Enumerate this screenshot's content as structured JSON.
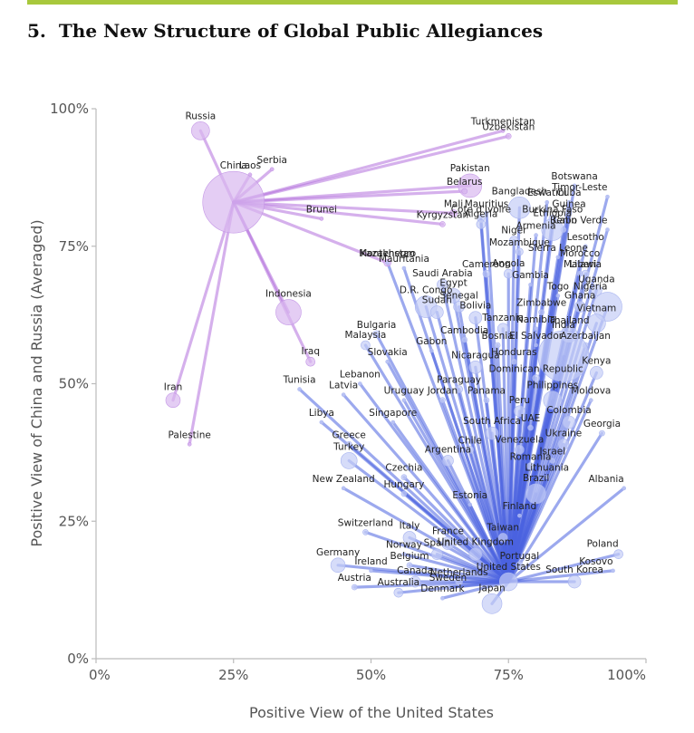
{
  "header": {
    "number": "5.",
    "title": "The New Structure of Global Public Allegiances"
  },
  "colors": {
    "accent": "#a8c83c",
    "china_links": "#b36fdc",
    "us_links": "#4a63e0",
    "axis": "#bbbbbb"
  },
  "chart_data": {
    "type": "scatter",
    "title": "",
    "xlabel": "Positive View of the United States",
    "ylabel": "Positive View of China and Russia (Averaged)",
    "xlim": [
      0,
      100
    ],
    "ylim": [
      0,
      100
    ],
    "x_ticks": [
      "0%",
      "25%",
      "50%",
      "75%",
      "100%"
    ],
    "y_ticks": [
      "0%",
      "25%",
      "50%",
      "75%",
      "100%"
    ],
    "grid": false,
    "legend": "none",
    "hubs": [
      {
        "name": "China",
        "x": 25,
        "y": 83
      },
      {
        "name": "United States",
        "x": 75,
        "y": 14
      }
    ],
    "points": [
      {
        "name": "Russia",
        "x": 19,
        "y": 96,
        "size": 10,
        "group": "china"
      },
      {
        "name": "Serbia",
        "x": 32,
        "y": 89,
        "size": 2,
        "group": "china"
      },
      {
        "name": "Laos",
        "x": 28,
        "y": 88,
        "size": 2,
        "group": "china"
      },
      {
        "name": "China",
        "x": 25,
        "y": 83,
        "size": 34,
        "group": "china",
        "hub": true
      },
      {
        "name": "Brunei",
        "x": 41,
        "y": 80,
        "size": 2,
        "group": "china"
      },
      {
        "name": "Turkmenistan",
        "x": 74,
        "y": 96,
        "size": 2,
        "group": "china"
      },
      {
        "name": "Uzbekistan",
        "x": 75,
        "y": 95,
        "size": 3,
        "group": "china"
      },
      {
        "name": "Pakistan",
        "x": 68,
        "y": 86,
        "size": 13,
        "group": "china"
      },
      {
        "name": "Belarus",
        "x": 67,
        "y": 85,
        "size": 3,
        "group": "china"
      },
      {
        "name": "Mali",
        "x": 65,
        "y": 81,
        "size": 4,
        "group": "china"
      },
      {
        "name": "Kyrgyzstan",
        "x": 63,
        "y": 79,
        "size": 3,
        "group": "china"
      },
      {
        "name": "Kazakhstan",
        "x": 53,
        "y": 72,
        "size": 4,
        "group": "china"
      },
      {
        "name": "Indonesia",
        "x": 35,
        "y": 63,
        "size": 14,
        "group": "china"
      },
      {
        "name": "Iraq",
        "x": 39,
        "y": 54,
        "size": 5,
        "group": "china"
      },
      {
        "name": "Iran",
        "x": 14,
        "y": 47,
        "size": 8,
        "group": "china"
      },
      {
        "name": "Palestine",
        "x": 17,
        "y": 39,
        "size": 2,
        "group": "china"
      },
      {
        "name": "Eswatini",
        "x": 82,
        "y": 83,
        "size": 2,
        "group": "us"
      },
      {
        "name": "Botswana",
        "x": 87,
        "y": 86,
        "size": 2,
        "group": "us"
      },
      {
        "name": "Cuba",
        "x": 86,
        "y": 83,
        "size": 2,
        "group": "us"
      },
      {
        "name": "Timor-Leste",
        "x": 93,
        "y": 84,
        "size": 2,
        "group": "us"
      },
      {
        "name": "Bangladesh",
        "x": 77,
        "y": 82,
        "size": 12,
        "group": "us"
      },
      {
        "name": "Mauritius",
        "x": 71,
        "y": 81,
        "size": 2,
        "group": "us"
      },
      {
        "name": "Burkina Faso",
        "x": 83,
        "y": 80,
        "size": 4,
        "group": "us"
      },
      {
        "name": "Guinea",
        "x": 86,
        "y": 81,
        "size": 3,
        "group": "us"
      },
      {
        "name": "Benin",
        "x": 85,
        "y": 78,
        "size": 3,
        "group": "us"
      },
      {
        "name": "Cabo Verde",
        "x": 93,
        "y": 78,
        "size": 2,
        "group": "us"
      },
      {
        "name": "Cote d'Ivoire",
        "x": 70,
        "y": 80,
        "size": 4,
        "group": "us"
      },
      {
        "name": "Ethiopia",
        "x": 83,
        "y": 78,
        "size": 12,
        "group": "us"
      },
      {
        "name": "Algeria",
        "x": 70,
        "y": 79,
        "size": 5,
        "group": "us"
      },
      {
        "name": "Niger",
        "x": 76,
        "y": 76,
        "size": 5,
        "group": "us"
      },
      {
        "name": "Armenia",
        "x": 80,
        "y": 77,
        "size": 2,
        "group": "us"
      },
      {
        "name": "Lesotho",
        "x": 89,
        "y": 75,
        "size": 2,
        "group": "us"
      },
      {
        "name": "Mozambique",
        "x": 77,
        "y": 74,
        "size": 4,
        "group": "us"
      },
      {
        "name": "Sierra Leone",
        "x": 84,
        "y": 73,
        "size": 2,
        "group": "us"
      },
      {
        "name": "Morocco",
        "x": 88,
        "y": 72,
        "size": 3,
        "group": "us"
      },
      {
        "name": "Montenegro",
        "x": 53,
        "y": 72,
        "size": 2,
        "group": "us"
      },
      {
        "name": "Angola",
        "x": 75,
        "y": 70,
        "size": 5,
        "group": "us"
      },
      {
        "name": "Cameroon",
        "x": 71,
        "y": 70,
        "size": 4,
        "group": "us"
      },
      {
        "name": "Mauritania",
        "x": 56,
        "y": 71,
        "size": 2,
        "group": "us"
      },
      {
        "name": "Malawi",
        "x": 88,
        "y": 70,
        "size": 3,
        "group": "us"
      },
      {
        "name": "Liberia",
        "x": 89,
        "y": 70,
        "size": 4,
        "group": "us"
      },
      {
        "name": "Saudi Arabia",
        "x": 63,
        "y": 68,
        "size": 6,
        "group": "us"
      },
      {
        "name": "Gambia",
        "x": 79,
        "y": 68,
        "size": 2,
        "group": "us"
      },
      {
        "name": "Egypt",
        "x": 65,
        "y": 66,
        "size": 8,
        "group": "us"
      },
      {
        "name": "Togo",
        "x": 84,
        "y": 66,
        "size": 2,
        "group": "us"
      },
      {
        "name": "Uganda",
        "x": 91,
        "y": 67,
        "size": 6,
        "group": "us"
      },
      {
        "name": "D.R. Congo",
        "x": 60,
        "y": 64,
        "size": 12,
        "group": "us"
      },
      {
        "name": "Senegal",
        "x": 66,
        "y": 64,
        "size": 6,
        "group": "us"
      },
      {
        "name": "Nigeria",
        "x": 93,
        "y": 64,
        "size": 16,
        "group": "us"
      },
      {
        "name": "Zimbabwe",
        "x": 81,
        "y": 63,
        "size": 3,
        "group": "us"
      },
      {
        "name": "Ghana",
        "x": 88,
        "y": 64,
        "size": 6,
        "group": "us"
      },
      {
        "name": "Sudan",
        "x": 62,
        "y": 63,
        "size": 7,
        "group": "us"
      },
      {
        "name": "Bolivia",
        "x": 69,
        "y": 62,
        "size": 7,
        "group": "us"
      },
      {
        "name": "Vietnam",
        "x": 91,
        "y": 61,
        "size": 10,
        "group": "us"
      },
      {
        "name": "Tanzania",
        "x": 74,
        "y": 60,
        "size": 6,
        "group": "us"
      },
      {
        "name": "Namibia",
        "x": 80,
        "y": 60,
        "size": 2,
        "group": "us"
      },
      {
        "name": "Thailand",
        "x": 86,
        "y": 59,
        "size": 9,
        "group": "us"
      },
      {
        "name": "Bulgaria",
        "x": 51,
        "y": 59,
        "size": 4,
        "group": "us"
      },
      {
        "name": "Malaysia",
        "x": 49,
        "y": 57,
        "size": 5,
        "group": "us"
      },
      {
        "name": "Cambodia",
        "x": 67,
        "y": 58,
        "size": 3,
        "group": "us"
      },
      {
        "name": "Bosnia",
        "x": 73,
        "y": 57,
        "size": 3,
        "group": "us"
      },
      {
        "name": "El Salvador",
        "x": 80,
        "y": 57,
        "size": 2,
        "group": "us"
      },
      {
        "name": "Azerbaijan",
        "x": 89,
        "y": 57,
        "size": 3,
        "group": "us"
      },
      {
        "name": "Gabon",
        "x": 61,
        "y": 56,
        "size": 2,
        "group": "us"
      },
      {
        "name": "Honduras",
        "x": 76,
        "y": 54,
        "size": 3,
        "group": "us"
      },
      {
        "name": "India",
        "x": 85,
        "y": 55,
        "size": 28,
        "group": "us"
      },
      {
        "name": "Slovakia",
        "x": 53,
        "y": 54,
        "size": 2,
        "group": "us"
      },
      {
        "name": "Nicaragua",
        "x": 69,
        "y": 53,
        "size": 7,
        "group": "us"
      },
      {
        "name": "Tunisia",
        "x": 37,
        "y": 49,
        "size": 2,
        "group": "us"
      },
      {
        "name": "Lebanon",
        "x": 48,
        "y": 50,
        "size": 2,
        "group": "us"
      },
      {
        "name": "Dominican Republic",
        "x": 80,
        "y": 51,
        "size": 4,
        "group": "us"
      },
      {
        "name": "Kenya",
        "x": 91,
        "y": 52,
        "size": 7,
        "group": "us"
      },
      {
        "name": "Paraguay",
        "x": 66,
        "y": 49,
        "size": 4,
        "group": "us"
      },
      {
        "name": "Latvia",
        "x": 45,
        "y": 48,
        "size": 2,
        "group": "us"
      },
      {
        "name": "Uruguay",
        "x": 56,
        "y": 47,
        "size": 2,
        "group": "us"
      },
      {
        "name": "Jordan",
        "x": 63,
        "y": 47,
        "size": 3,
        "group": "us"
      },
      {
        "name": "Panama",
        "x": 71,
        "y": 47,
        "size": 3,
        "group": "us"
      },
      {
        "name": "Philippines",
        "x": 83,
        "y": 47,
        "size": 10,
        "group": "us"
      },
      {
        "name": "Moldova",
        "x": 90,
        "y": 47,
        "size": 2,
        "group": "us"
      },
      {
        "name": "Peru",
        "x": 77,
        "y": 45,
        "size": 6,
        "group": "us"
      },
      {
        "name": "Libya",
        "x": 41,
        "y": 43,
        "size": 2,
        "group": "us"
      },
      {
        "name": "Singapore",
        "x": 54,
        "y": 43,
        "size": 2,
        "group": "us"
      },
      {
        "name": "Colombia",
        "x": 86,
        "y": 43,
        "size": 7,
        "group": "us"
      },
      {
        "name": "UAE",
        "x": 79,
        "y": 42,
        "size": 3,
        "group": "us"
      },
      {
        "name": "South Africa",
        "x": 72,
        "y": 41,
        "size": 7,
        "group": "us"
      },
      {
        "name": "Greece",
        "x": 46,
        "y": 39,
        "size": 3,
        "group": "us"
      },
      {
        "name": "Ukraine",
        "x": 85,
        "y": 39,
        "size": 6,
        "group": "us"
      },
      {
        "name": "Georgia",
        "x": 92,
        "y": 41,
        "size": 3,
        "group": "us"
      },
      {
        "name": "Chile",
        "x": 68,
        "y": 38,
        "size": 4,
        "group": "us"
      },
      {
        "name": "Venezuela",
        "x": 77,
        "y": 38,
        "size": 5,
        "group": "us"
      },
      {
        "name": "Turkey",
        "x": 46,
        "y": 36,
        "size": 9,
        "group": "us"
      },
      {
        "name": "Israel",
        "x": 83,
        "y": 36,
        "size": 3,
        "group": "us"
      },
      {
        "name": "Argentina",
        "x": 64,
        "y": 36,
        "size": 6,
        "group": "us"
      },
      {
        "name": "Romania",
        "x": 79,
        "y": 35,
        "size": 4,
        "group": "us"
      },
      {
        "name": "Czechia",
        "x": 56,
        "y": 33,
        "size": 3,
        "group": "us"
      },
      {
        "name": "Lithuania",
        "x": 82,
        "y": 33,
        "size": 2,
        "group": "us"
      },
      {
        "name": "Brazil",
        "x": 80,
        "y": 30,
        "size": 11,
        "group": "us"
      },
      {
        "name": "Albania",
        "x": 96,
        "y": 31,
        "size": 2,
        "group": "us"
      },
      {
        "name": "New Zealand",
        "x": 45,
        "y": 31,
        "size": 2,
        "group": "us"
      },
      {
        "name": "Hungary",
        "x": 56,
        "y": 30,
        "size": 3,
        "group": "us"
      },
      {
        "name": "Estonia",
        "x": 68,
        "y": 28,
        "size": 2,
        "group": "us"
      },
      {
        "name": "Finland",
        "x": 77,
        "y": 26,
        "size": 2,
        "group": "us"
      },
      {
        "name": "Switzerland",
        "x": 49,
        "y": 23,
        "size": 3,
        "group": "us"
      },
      {
        "name": "Italy",
        "x": 57,
        "y": 22,
        "size": 7,
        "group": "us"
      },
      {
        "name": "France",
        "x": 64,
        "y": 21,
        "size": 7,
        "group": "us"
      },
      {
        "name": "Taiwan",
        "x": 74,
        "y": 22,
        "size": 5,
        "group": "us"
      },
      {
        "name": "Poland",
        "x": 95,
        "y": 19,
        "size": 5,
        "group": "us"
      },
      {
        "name": "Germany",
        "x": 44,
        "y": 17,
        "size": 8,
        "group": "us"
      },
      {
        "name": "Norway",
        "x": 56,
        "y": 19,
        "size": 2,
        "group": "us"
      },
      {
        "name": "Spain",
        "x": 62,
        "y": 19,
        "size": 6,
        "group": "us"
      },
      {
        "name": "United Kingdom",
        "x": 69,
        "y": 19,
        "size": 7,
        "group": "us"
      },
      {
        "name": "Belgium",
        "x": 57,
        "y": 17,
        "size": 3,
        "group": "us"
      },
      {
        "name": "Portugal",
        "x": 77,
        "y": 17,
        "size": 4,
        "group": "us"
      },
      {
        "name": "Kosovo",
        "x": 94,
        "y": 16,
        "size": 2,
        "group": "us"
      },
      {
        "name": "Ireland",
        "x": 50,
        "y": 16,
        "size": 2,
        "group": "us"
      },
      {
        "name": "Netherlands",
        "x": 66,
        "y": 14,
        "size": 4,
        "group": "us"
      },
      {
        "name": "Canada",
        "x": 58,
        "y": 14,
        "size": 6,
        "group": "us"
      },
      {
        "name": "South Korea",
        "x": 87,
        "y": 14,
        "size": 7,
        "group": "us"
      },
      {
        "name": "Austria",
        "x": 47,
        "y": 13,
        "size": 3,
        "group": "us"
      },
      {
        "name": "Australia",
        "x": 55,
        "y": 12,
        "size": 5,
        "group": "us"
      },
      {
        "name": "Sweden",
        "x": 64,
        "y": 13,
        "size": 3,
        "group": "us"
      },
      {
        "name": "United States",
        "x": 75,
        "y": 14,
        "size": 10,
        "group": "us",
        "hub": true
      },
      {
        "name": "Denmark",
        "x": 63,
        "y": 11,
        "size": 2,
        "group": "us"
      },
      {
        "name": "Japan",
        "x": 72,
        "y": 10,
        "size": 11,
        "group": "us"
      }
    ]
  }
}
